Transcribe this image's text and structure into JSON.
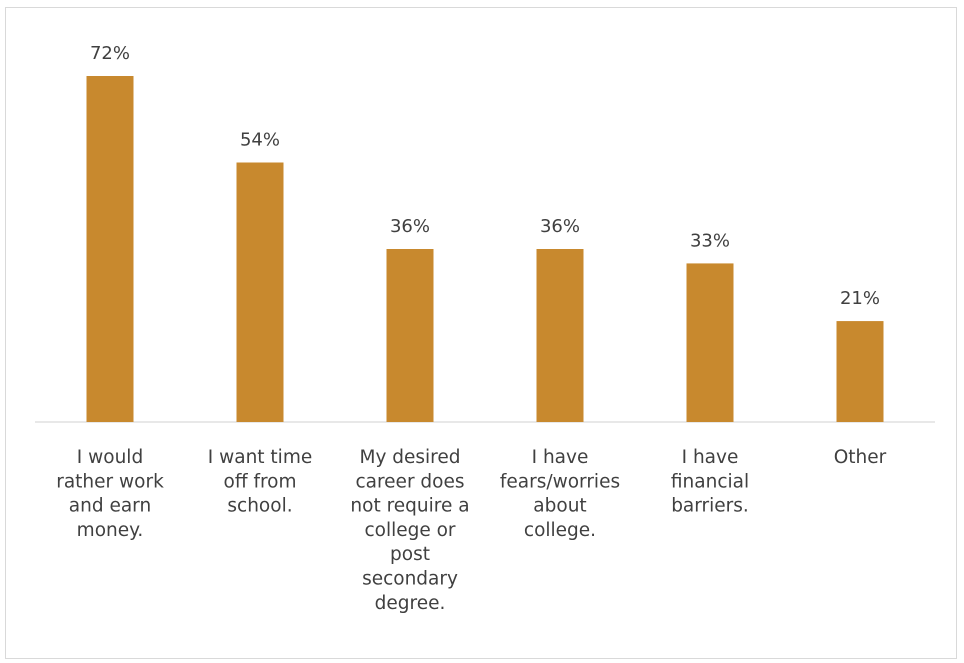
{
  "colors": {
    "bar": "#C8892E",
    "text": "#404040",
    "axis": "#d9d9d9",
    "border": "#d9d9d9"
  },
  "chart_data": {
    "type": "bar",
    "title": "",
    "xlabel": "",
    "ylabel": "",
    "ylim": [
      0,
      80
    ],
    "grid": false,
    "legend": "none",
    "categories": [
      "I would rather work and earn money.",
      "I want time off from school.",
      "My desired career does not require a college or post secondary degree.",
      "I have fears/worries about college.",
      "I have financial barriers.",
      "Other"
    ],
    "category_lines": [
      [
        "I would",
        "rather work",
        "and earn",
        "money."
      ],
      [
        "I want time",
        "off from",
        "school."
      ],
      [
        "My desired",
        "career does",
        "not require a",
        "college or",
        "post",
        "secondary",
        "degree."
      ],
      [
        "I have",
        "fears/worries",
        "about",
        "college."
      ],
      [
        "I have",
        "financial",
        "barriers."
      ],
      [
        "Other"
      ]
    ],
    "values": [
      72,
      54,
      36,
      36,
      33,
      21
    ],
    "value_labels": [
      "72%",
      "54%",
      "36%",
      "36%",
      "33%",
      "21%"
    ],
    "unit": "%"
  }
}
